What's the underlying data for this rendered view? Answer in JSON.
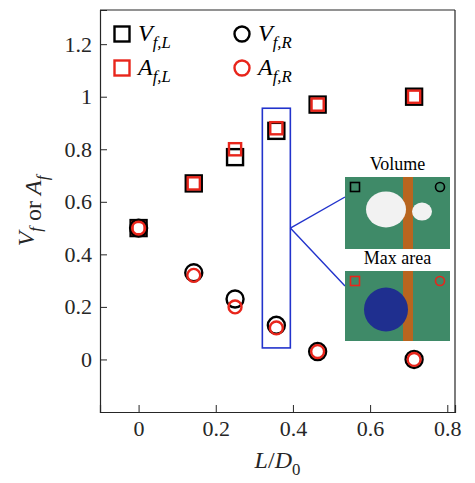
{
  "chart_data": {
    "type": "scatter",
    "x_label": "L/D0",
    "y_label": "Vf or Af",
    "x": [
      0,
      0.143,
      0.25,
      0.357,
      0.464,
      0.714
    ],
    "series": [
      {
        "name": "Vf,L",
        "color": "#000000",
        "marker": "square",
        "values": [
          0.5,
          0.67,
          0.77,
          0.87,
          0.97,
          1.0
        ]
      },
      {
        "name": "Af,L",
        "color": "#e8251b",
        "marker": "square",
        "values": [
          0.5,
          0.67,
          0.8,
          0.88,
          0.97,
          1.0
        ]
      },
      {
        "name": "Vf,R",
        "color": "#000000",
        "marker": "circle",
        "values": [
          0.5,
          0.33,
          0.23,
          0.13,
          0.03,
          0.0
        ]
      },
      {
        "name": "Af,R",
        "color": "#e8251b",
        "marker": "circle",
        "values": [
          0.5,
          0.32,
          0.2,
          0.12,
          0.03,
          0.0
        ]
      }
    ],
    "xlim": [
      -0.1,
      0.82
    ],
    "ylim": [
      -0.2,
      1.33
    ],
    "xticks": [
      0,
      0.2,
      0.4,
      0.6,
      0.8
    ],
    "yticks": [
      0,
      0.2,
      0.4,
      0.6,
      0.8,
      1,
      1.2
    ],
    "legend": "upper left",
    "annotations": [
      "Volume",
      "Max area"
    ]
  }
}
